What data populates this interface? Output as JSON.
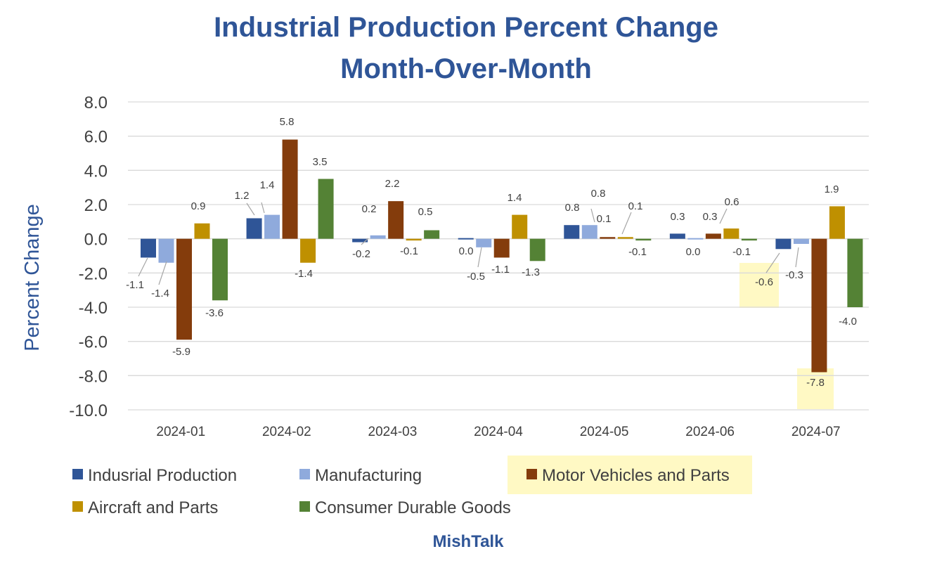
{
  "chart_data": {
    "type": "bar",
    "title": "Industrial Production Percent Change Month-Over-Month",
    "title_lines": [
      "Industrial Production Percent Change",
      "Month-Over-Month"
    ],
    "xlabel": "",
    "ylabel": "Percent Change",
    "ylim": [
      -10.0,
      8.0
    ],
    "yticks": [
      "8.0",
      "6.0",
      "4.0",
      "2.0",
      "0.0",
      "-2.0",
      "-4.0",
      "-6.0",
      "-8.0",
      "-10.0"
    ],
    "ytick_values": [
      8,
      6,
      4,
      2,
      0,
      -2,
      -4,
      -6,
      -8,
      -10
    ],
    "grid": true,
    "legend_position": "bottom",
    "categories": [
      "2024-01",
      "2024-02",
      "2024-03",
      "2024-04",
      "2024-05",
      "2024-06",
      "2024-07"
    ],
    "series": [
      {
        "name": "Indusrial Production",
        "color": "#2F5597",
        "values": [
          -1.1,
          1.2,
          -0.2,
          0.0,
          0.8,
          0.3,
          -0.6
        ],
        "labels": [
          "-1.1",
          "1.2",
          "-0.2",
          "0.0",
          "0.8",
          "0.3",
          "-0.6"
        ]
      },
      {
        "name": "Manufacturing",
        "color": "#8FAADC",
        "values": [
          -1.4,
          1.4,
          0.2,
          -0.5,
          0.8,
          0.0,
          -0.3
        ],
        "labels": [
          "-1.4",
          "1.4",
          "0.2",
          "-0.5",
          "0.8",
          "0.0",
          "-0.3"
        ]
      },
      {
        "name": "Motor Vehicles and Parts",
        "color": "#843C0C",
        "values": [
          -5.9,
          5.8,
          2.2,
          -1.1,
          0.1,
          0.3,
          -7.8
        ],
        "labels": [
          "-5.9",
          "5.8",
          "2.2",
          "-1.1",
          "0.1",
          "0.3",
          "-7.8"
        ]
      },
      {
        "name": "Aircraft and Parts",
        "color": "#BF9000",
        "values": [
          0.9,
          -1.4,
          -0.1,
          1.4,
          0.1,
          0.6,
          1.9
        ],
        "labels": [
          "0.9",
          "-1.4",
          "-0.1",
          "1.4",
          "0.1",
          "0.6",
          "1.9"
        ]
      },
      {
        "name": "Consumer Durable Goods",
        "color": "#548235",
        "values": [
          -3.6,
          3.5,
          0.5,
          -1.3,
          -0.1,
          -0.1,
          -4.0
        ],
        "labels": [
          "-3.6",
          "3.5",
          "0.5",
          "-1.3",
          "-0.1",
          "-0.1",
          "-4.0"
        ]
      }
    ],
    "highlight_color": "#FFF9C4"
  },
  "source": "MishTalk"
}
